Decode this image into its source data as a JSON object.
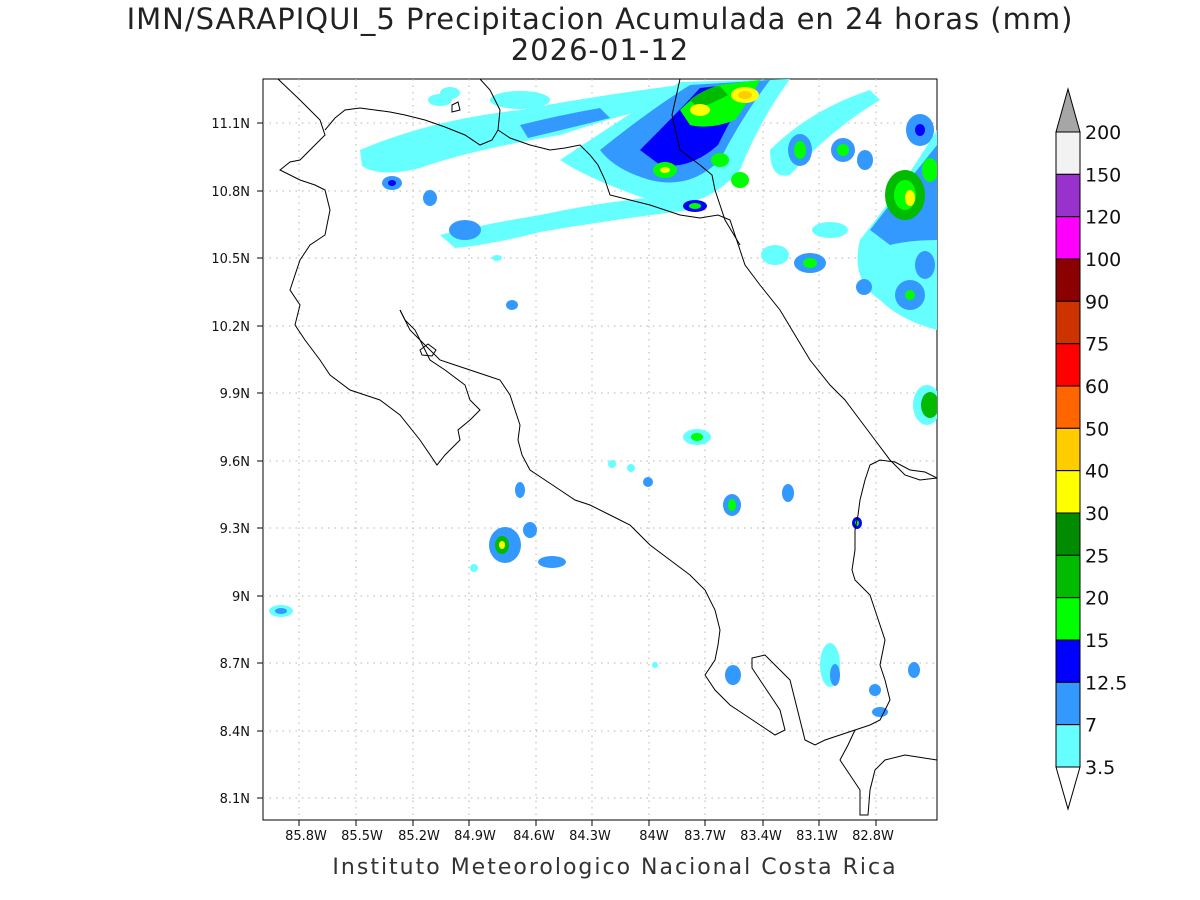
{
  "title_line1": "IMN/SARAPIQUI_5 Precipitacion Acumulada en 24 horas (mm)",
  "title_line2": "2026-01-12",
  "footer": "Instituto Meteorologico Nacional Costa Rica",
  "map": {
    "lon_labels": [
      "85.8W",
      "85.5W",
      "85.2W",
      "84.9W",
      "84.6W",
      "84.3W",
      "84W",
      "83.7W",
      "83.4W",
      "83.1W",
      "82.8W"
    ],
    "lat_labels": [
      "11.1N",
      "10.8N",
      "10.5N",
      "10.2N",
      "9.9N",
      "9.6N",
      "9.3N",
      "9N",
      "8.7N",
      "8.4N",
      "8.1N"
    ]
  },
  "colorbar": {
    "labels": [
      "200",
      "150",
      "120",
      "100",
      "90",
      "75",
      "60",
      "50",
      "40",
      "30",
      "25",
      "20",
      "15",
      "12.5",
      "7",
      "3.5"
    ],
    "colors": [
      "#a6a6a6",
      "#f2f2f2",
      "#9932cc",
      "#ff00ff",
      "#8b0000",
      "#cc3300",
      "#ff0000",
      "#ff6600",
      "#ffcc00",
      "#ffff00",
      "#008b00",
      "#00bb00",
      "#00ff00",
      "#0000ff",
      "#3399ff",
      "#66ffff"
    ]
  }
}
